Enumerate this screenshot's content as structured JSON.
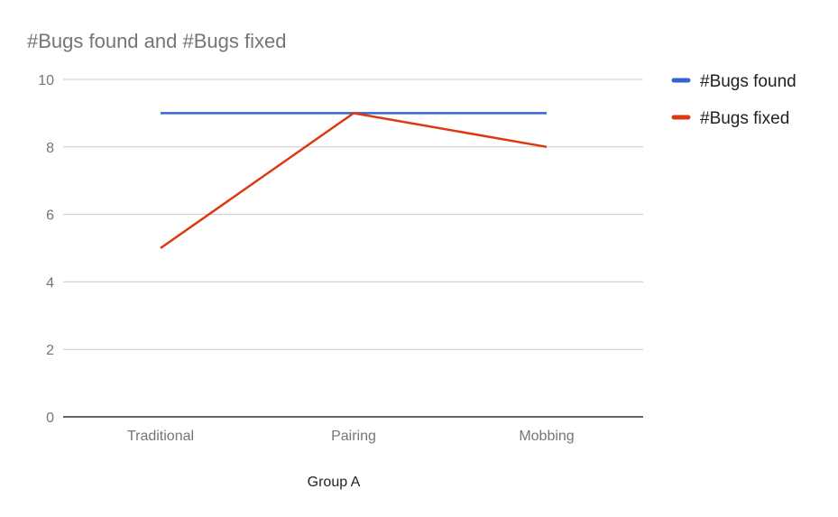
{
  "chart_data": {
    "type": "line",
    "title": "#Bugs found and #Bugs fixed",
    "xlabel": "Group A",
    "ylabel": "",
    "categories": [
      "Traditional",
      "Pairing",
      "Mobbing"
    ],
    "series": [
      {
        "name": "#Bugs found",
        "values": [
          9,
          9,
          9
        ],
        "color": "#3366cc"
      },
      {
        "name": "#Bugs fixed",
        "values": [
          5,
          9,
          8
        ],
        "color": "#dc3912"
      }
    ],
    "ylim": [
      0,
      10
    ],
    "yticks": [
      0,
      2,
      4,
      6,
      8,
      10
    ],
    "grid": true,
    "legend_position": "right"
  }
}
